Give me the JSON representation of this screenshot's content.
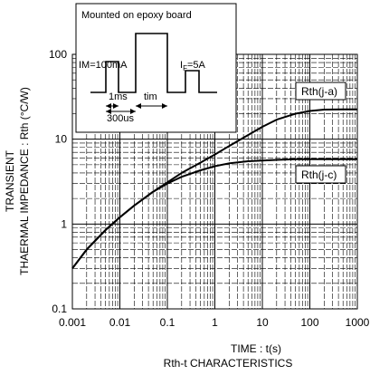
{
  "chart_data": {
    "type": "line",
    "title": "Rth-t CHARACTERISTICS",
    "xlabel": "TIME : t(s)",
    "ylabel_line1": "TRANSIENT",
    "ylabel_line2": "THAERMAL IMPEDANCE : Rth (°C/W)",
    "x_scale": "log",
    "y_scale": "log",
    "xlim": [
      0.001,
      1000
    ],
    "ylim": [
      0.1,
      100
    ],
    "grid": true,
    "x_ticks": [
      "0.001",
      "0.01",
      "0.1",
      "1",
      "10",
      "100",
      "1000"
    ],
    "y_ticks": [
      "0.1",
      "1",
      "10",
      "100"
    ],
    "series": [
      {
        "name": "Rth(j-a)",
        "x": [
          0.001,
          0.002,
          0.005,
          0.01,
          0.02,
          0.05,
          0.1,
          0.2,
          0.5,
          1,
          2,
          5,
          10,
          20,
          50,
          100,
          200,
          500,
          1000
        ],
        "y": [
          0.3,
          0.5,
          0.85,
          1.2,
          1.65,
          2.4,
          3.1,
          4.0,
          5.3,
          6.6,
          8.3,
          11.2,
          14.0,
          17.0,
          20.0,
          21.5,
          22.3,
          22.5,
          22.5
        ]
      },
      {
        "name": "Rth(j-c)",
        "x": [
          0.001,
          0.002,
          0.005,
          0.01,
          0.02,
          0.05,
          0.1,
          0.2,
          0.5,
          1,
          2,
          5,
          10,
          20,
          50,
          100,
          200,
          500,
          1000
        ],
        "y": [
          0.3,
          0.5,
          0.85,
          1.2,
          1.65,
          2.4,
          3.0,
          3.6,
          4.3,
          4.8,
          5.2,
          5.5,
          5.6,
          5.7,
          5.8,
          5.8,
          5.8,
          5.8,
          5.8
        ]
      }
    ],
    "inset": {
      "title": "Mounted on epoxy board",
      "im_label": "IM=100mA",
      "if_label_main": "I",
      "if_label_sub": "F",
      "if_label_value": "=5A",
      "pulse_width_label": "1ms",
      "period_label": "300us",
      "tim_label": "tim"
    }
  }
}
